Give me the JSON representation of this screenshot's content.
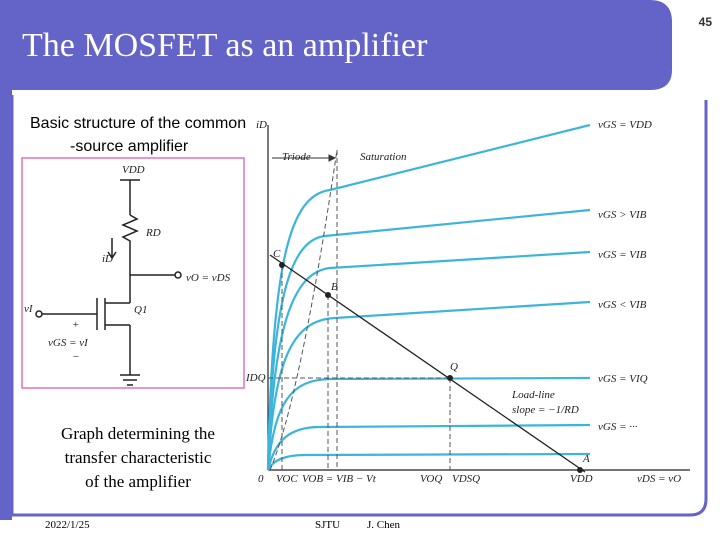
{
  "header": {
    "title": "The MOSFET as an amplifier",
    "slide_number": "45"
  },
  "left_caption": [
    "Basic structure of the common",
    "-source amplifier"
  ],
  "circuit": {
    "labels": [
      "VDD",
      "RD",
      "iD",
      "vO = vDS",
      "Q1",
      "vI",
      "+",
      "vGS = vI",
      "−"
    ]
  },
  "graph": {
    "labels": [
      "iD",
      "Triode",
      "Saturation",
      "vGS = VDD",
      "vGS > VIB",
      "vGS = VIB",
      "vGS < VIB",
      "vGS = VIQ",
      "vGS = ···",
      "C",
      "B",
      "Q",
      "A",
      "IDQ",
      "Load-line",
      "slope = −1/RD",
      "0",
      "VOC",
      "VOB = VIB − Vt",
      "VOQ",
      "VDSQ",
      "VDD",
      "vDS = vO"
    ]
  },
  "graph_caption": [
    "Graph determining the",
    "transfer characteristic",
    "of the amplifier"
  ],
  "footer": {
    "date": "2022/1/25",
    "school": "SJTU",
    "author": "J. Chen"
  }
}
